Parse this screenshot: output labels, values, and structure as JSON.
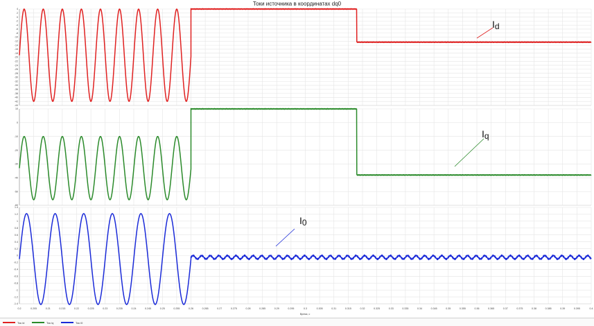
{
  "title": "Токи источника в координатах dq0",
  "chart_data": [
    {
      "type": "line",
      "series": [
        {
          "name": "Ток id",
          "color": "#e02020"
        }
      ],
      "annotation": "Id",
      "ylim": [
        -44,
        4
      ],
      "yticks": [
        "4",
        "2",
        "0",
        "-2",
        "-4",
        "-6",
        "-8",
        "-10",
        "-12",
        "-14",
        "-16",
        "-18",
        "-20",
        "-22",
        "-24",
        "-26",
        "-28",
        "-30",
        "-32",
        "-34",
        "-36",
        "-38",
        "-40",
        "-42",
        "-44"
      ],
      "segments": [
        {
          "x_start": 0.2,
          "x_end": 0.26,
          "form": "sine",
          "mid": -19,
          "amplitude": 23,
          "period": 0.00667
        },
        {
          "x_start": 0.26,
          "x_end": 0.318,
          "form": "flat",
          "value": 4
        },
        {
          "x_start": 0.318,
          "x_end": 0.4,
          "form": "flat",
          "value": -12.5
        }
      ]
    },
    {
      "type": "line",
      "series": [
        {
          "name": "Ток iq",
          "color": "#2a8a2a"
        }
      ],
      "annotation": "Iq",
      "ylim": [
        -60,
        10
      ],
      "yticks": [
        "10",
        "0",
        "-10",
        "-20",
        "-30",
        "-40",
        "-50",
        "-60"
      ],
      "segments": [
        {
          "x_start": 0.2,
          "x_end": 0.26,
          "form": "sine",
          "mid": -33,
          "amplitude": 23,
          "period": 0.00667
        },
        {
          "x_start": 0.26,
          "x_end": 0.318,
          "form": "flat",
          "value": 10
        },
        {
          "x_start": 0.318,
          "x_end": 0.4,
          "form": "flat",
          "value": -38
        }
      ]
    },
    {
      "type": "line",
      "series": [
        {
          "name": "Ток i0",
          "color": "#1a2ad8"
        }
      ],
      "annotation": "I0",
      "ylim": [
        -1.4,
        1.4
      ],
      "yticks": [
        "1.4",
        "1.2",
        "1",
        "0.8",
        "0.6",
        "0.4",
        "0.2",
        "0",
        "-0.2",
        "-0.4",
        "-0.6",
        "-0.8",
        "-1",
        "-1.2",
        "-1.4"
      ],
      "xlabel": "Время, с",
      "xlim": [
        0.2,
        0.4
      ],
      "xticks": [
        "0.2",
        "0.205",
        "0.21",
        "0.215",
        "0.22",
        "0.225",
        "0.23",
        "0.235",
        "0.24",
        "0.245",
        "0.25",
        "0.255",
        "0.26",
        "0.265",
        "0.27",
        "0.275",
        "0.28",
        "0.285",
        "0.29",
        "0.295",
        "0.3",
        "0.305",
        "0.31",
        "0.315",
        "0.32",
        "0.325",
        "0.33",
        "0.335",
        "0.34",
        "0.345",
        "0.35",
        "0.355",
        "0.36",
        "0.365",
        "0.37",
        "0.375",
        "0.38",
        "0.385",
        "0.39",
        "0.395",
        "0.4"
      ],
      "segments": [
        {
          "x_start": 0.2,
          "x_end": 0.26,
          "form": "sine",
          "mid": -0.1,
          "amplitude": 1.32,
          "period": 0.01
        },
        {
          "x_start": 0.26,
          "x_end": 0.4,
          "form": "ripple",
          "mid": -0.05,
          "amplitude": 0.05,
          "period": 0.003
        }
      ]
    }
  ]
}
